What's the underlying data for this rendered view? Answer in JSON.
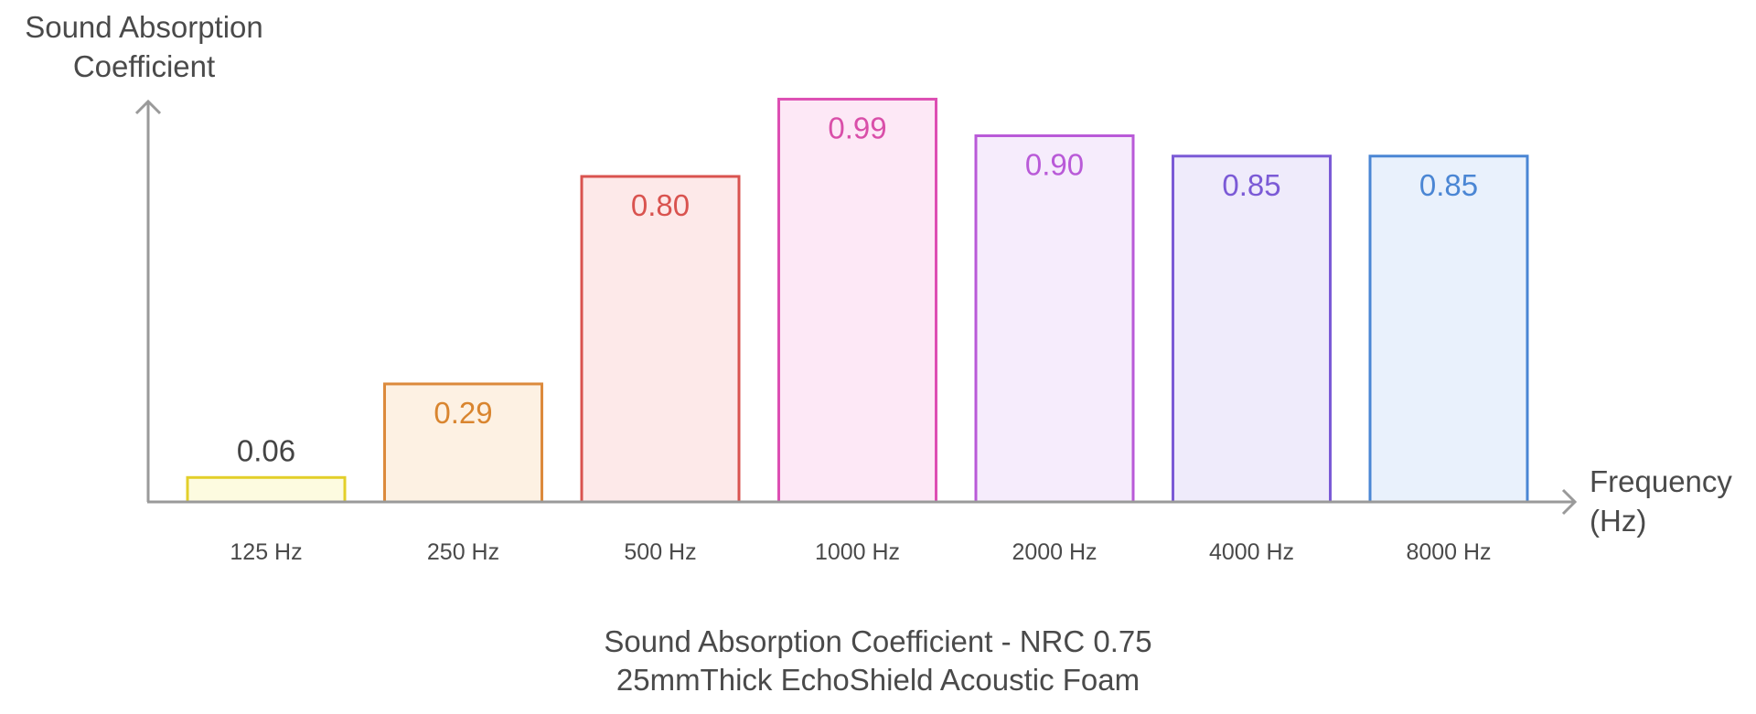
{
  "chart_data": {
    "type": "bar",
    "title": "",
    "caption": [
      "Sound Absorption Coefficient - NRC 0.75",
      "25mmThick EchoShield Acoustic Foam"
    ],
    "ylabel": [
      "Sound Absorption",
      "Coefficient"
    ],
    "xlabel": [
      "Frequency",
      "(Hz)"
    ],
    "categories": [
      "125 Hz",
      "250 Hz",
      "500 Hz",
      "1000 Hz",
      "2000 Hz",
      "4000 Hz",
      "8000 Hz"
    ],
    "values": [
      0.06,
      0.29,
      0.8,
      0.99,
      0.9,
      0.85,
      0.85
    ],
    "value_labels": [
      "0.06",
      "0.29",
      "0.80",
      "0.99",
      "0.90",
      "0.85",
      "0.85"
    ],
    "ylim": [
      0,
      1
    ],
    "grid": false,
    "colors": {
      "stroke": [
        "#e3cf2a",
        "#dc8a3c",
        "#d9534f",
        "#dd4fb3",
        "#b95ad8",
        "#7b5ad6",
        "#4a86d4"
      ],
      "fill": [
        "#fdfbe0",
        "#fdf1e3",
        "#fde9e9",
        "#fde8f6",
        "#f6ecfc",
        "#efebfb",
        "#e9f1fc"
      ],
      "label": [
        "#444444",
        "#d9852f",
        "#d9534f",
        "#d94fa9",
        "#b95ad8",
        "#7b5ad6",
        "#4a86d4"
      ],
      "axis": "#9a9a9a"
    }
  }
}
